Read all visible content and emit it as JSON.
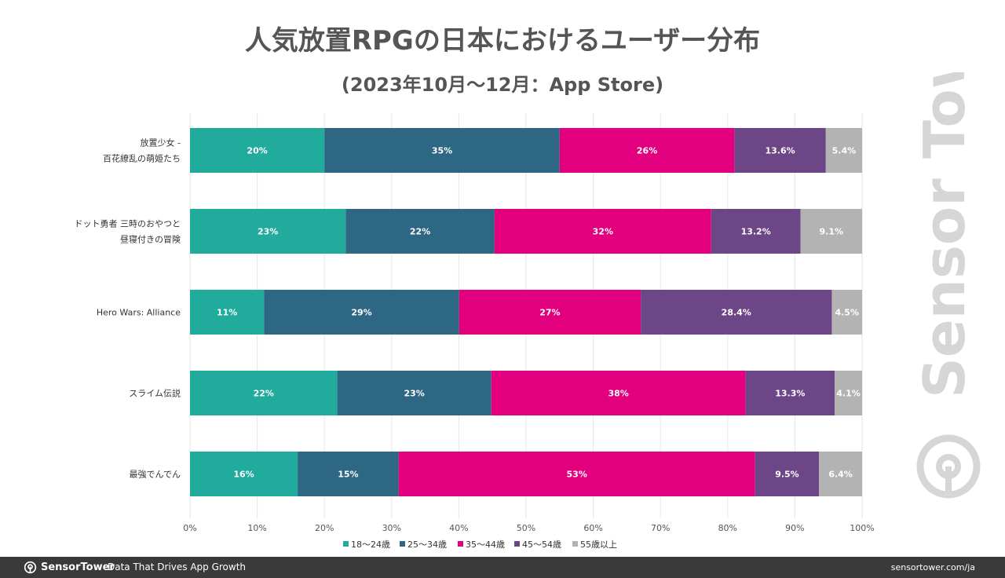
{
  "title": "人気放置RPGの日本におけるユーザー分布",
  "subtitle": "(2023年10月～12月：App Store)",
  "watermark_text": "Sensor Tower",
  "footer": {
    "brand": "SensorTower",
    "tagline": "Data That Drives App Growth",
    "url": "sensortower.com/ja"
  },
  "colors": {
    "s1": "#20ab9c",
    "s2": "#2e6784",
    "s3": "#e3007f",
    "s4": "#6d4688",
    "s5": "#b3b3b3",
    "text": "#555555",
    "grid": "#e6e6e6",
    "footer": "#3a3a3a"
  },
  "chart_data": {
    "type": "bar",
    "orientation": "horizontal",
    "stacked": true,
    "title": "人気放置RPGの日本におけるユーザー分布",
    "subtitle": "(2023年10月～12月：App Store)",
    "categories": [
      [
        "放置少女 -",
        "百花繚乱の萌姫たち"
      ],
      [
        "ドット勇者 三時のおやつと",
        "昼寝付きの冒険"
      ],
      [
        "Hero Wars: Alliance"
      ],
      [
        "スライム伝説"
      ],
      [
        "最強でんでん"
      ]
    ],
    "series": [
      {
        "name": "18～24歳",
        "values": [
          20,
          23,
          11,
          22,
          16
        ],
        "labels": [
          "20%",
          "23%",
          "11%",
          "22%",
          "16%"
        ]
      },
      {
        "name": "25～34歳",
        "values": [
          35,
          22,
          29,
          23,
          15
        ],
        "labels": [
          "35%",
          "22%",
          "29%",
          "23%",
          "15%"
        ]
      },
      {
        "name": "35～44歳",
        "values": [
          26,
          32,
          27,
          38,
          53
        ],
        "labels": [
          "26%",
          "32%",
          "27%",
          "38%",
          "53%"
        ]
      },
      {
        "name": "45～54歳",
        "values": [
          13.6,
          13.2,
          28.4,
          13.3,
          9.5
        ],
        "labels": [
          "13.6%",
          "13.2%",
          "28.4%",
          "13.3%",
          "9.5%"
        ]
      },
      {
        "name": "55歳以上",
        "values": [
          5.4,
          9.1,
          4.5,
          4.1,
          6.4
        ],
        "labels": [
          "5.4%",
          "9.1%",
          "4.5%",
          "4.1%",
          "6.4%"
        ]
      }
    ],
    "xlim": [
      0,
      100
    ],
    "xticks": [
      "0%",
      "10%",
      "20%",
      "30%",
      "40%",
      "50%",
      "60%",
      "70%",
      "80%",
      "90%",
      "100%"
    ],
    "grid": true,
    "legend_position": "bottom"
  }
}
